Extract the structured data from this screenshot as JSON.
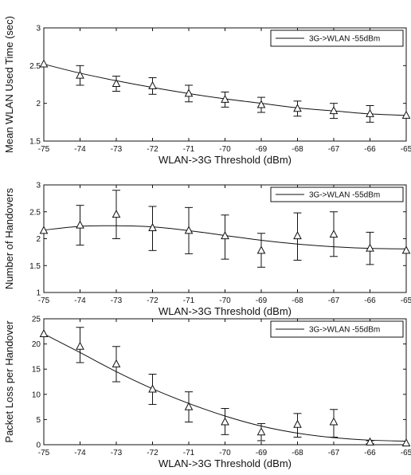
{
  "chart_data": [
    {
      "type": "line",
      "ylabel": "Mean WLAN Used Time (sec)",
      "xlabel": "WLAN->3G Threshold (dBm)",
      "xlim": [
        -75,
        -65
      ],
      "ylim": [
        1.5,
        3
      ],
      "xticks": [
        -75,
        -74,
        -73,
        -72,
        -71,
        -70,
        -69,
        -68,
        -67,
        -66,
        -65
      ],
      "yticks": [
        1.5,
        2,
        2.5,
        3
      ],
      "xtick_labels": [
        "-75",
        "-74",
        "-73",
        "-72",
        "-71",
        "-70",
        "-69",
        "-68",
        "-67",
        "-66",
        "-65"
      ],
      "ytick_labels": [
        "1.5",
        "2",
        "2.5",
        "3"
      ],
      "legend_position": "top-right",
      "series": [
        {
          "name": "3G->WLAN -55dBm",
          "color": "#111111",
          "x": [
            -75,
            -74,
            -73,
            -72,
            -71,
            -70,
            -69,
            -68,
            -67,
            -66,
            -65
          ],
          "y": [
            2.52,
            2.37,
            2.26,
            2.23,
            2.13,
            2.05,
            1.98,
            1.93,
            1.9,
            1.86,
            1.84
          ],
          "y_low": [
            2.52,
            2.24,
            2.16,
            2.12,
            2.02,
            1.95,
            1.88,
            1.83,
            1.8,
            1.75,
            1.84
          ],
          "y_high": [
            2.52,
            2.5,
            2.36,
            2.34,
            2.24,
            2.15,
            2.08,
            2.03,
            2.0,
            1.97,
            1.84
          ],
          "fit": [
            2.52,
            2.4,
            2.3,
            2.21,
            2.13,
            2.06,
            2.0,
            1.94,
            1.9,
            1.86,
            1.84
          ]
        }
      ]
    },
    {
      "type": "line",
      "ylabel": "Number of Handovers",
      "xlabel": "WLAN->3G Threshold (dBm)",
      "xlim": [
        -75,
        -65
      ],
      "ylim": [
        1,
        3
      ],
      "xticks": [
        -75,
        -74,
        -73,
        -72,
        -71,
        -70,
        -69,
        -68,
        -67,
        -66,
        -65
      ],
      "yticks": [
        1,
        1.5,
        2,
        2.5,
        3
      ],
      "xtick_labels": [
        "-75",
        "-74",
        "-73",
        "-72",
        "-71",
        "-70",
        "-69",
        "-68",
        "-67",
        "-66",
        "-65"
      ],
      "ytick_labels": [
        "1",
        "1.5",
        "2",
        "2.5",
        "3"
      ],
      "legend_position": "top-right",
      "series": [
        {
          "name": "3G->WLAN -55dBm",
          "color": "#111111",
          "x": [
            -75,
            -74,
            -73,
            -72,
            -71,
            -70,
            -69,
            -68,
            -67,
            -66,
            -65
          ],
          "y": [
            2.15,
            2.25,
            2.45,
            2.2,
            2.15,
            2.05,
            1.78,
            2.05,
            2.08,
            1.82,
            1.78
          ],
          "y_low": [
            2.15,
            1.88,
            2.0,
            1.78,
            1.72,
            1.62,
            1.47,
            1.6,
            1.67,
            1.52,
            1.78
          ],
          "y_high": [
            2.15,
            2.62,
            2.9,
            2.6,
            2.58,
            2.44,
            2.1,
            2.48,
            2.5,
            2.12,
            1.78
          ],
          "fit": [
            2.16,
            2.23,
            2.24,
            2.22,
            2.15,
            2.06,
            1.97,
            1.9,
            1.85,
            1.82,
            1.81
          ]
        }
      ]
    },
    {
      "type": "line",
      "ylabel": "Packet Loss per Handover",
      "xlabel": "WLAN->3G Threshold (dBm)",
      "xlim": [
        -75,
        -65
      ],
      "ylim": [
        0,
        25
      ],
      "xticks": [
        -75,
        -74,
        -73,
        -72,
        -71,
        -70,
        -69,
        -68,
        -67,
        -66,
        -65
      ],
      "yticks": [
        0,
        5,
        10,
        15,
        20,
        25
      ],
      "xtick_labels": [
        "-75",
        "-74",
        "-73",
        "-72",
        "-71",
        "-70",
        "-69",
        "-68",
        "-67",
        "-66",
        "-65"
      ],
      "ytick_labels": [
        "0",
        "5",
        "10",
        "15",
        "20",
        "25"
      ],
      "legend_position": "top-right",
      "series": [
        {
          "name": "3G->WLAN -55dBm",
          "color": "#111111",
          "x": [
            -75,
            -74,
            -73,
            -72,
            -71,
            -70,
            -69,
            -68,
            -67,
            -66,
            -65
          ],
          "y": [
            22,
            19.5,
            16,
            11,
            7.5,
            4.5,
            2.5,
            4,
            4.5,
            0.5,
            0.3
          ],
          "y_low": [
            22,
            16.3,
            12.5,
            8,
            4.5,
            2,
            0.8,
            1.5,
            1.5,
            0.2,
            0.3
          ],
          "y_high": [
            22,
            23.3,
            19.5,
            14,
            10.5,
            7.2,
            4.2,
            6.2,
            7,
            0.8,
            0.3
          ],
          "fit": [
            22,
            18.3,
            14.5,
            11.1,
            8.2,
            5.7,
            3.7,
            2.3,
            1.4,
            0.9,
            0.7
          ]
        }
      ]
    }
  ]
}
